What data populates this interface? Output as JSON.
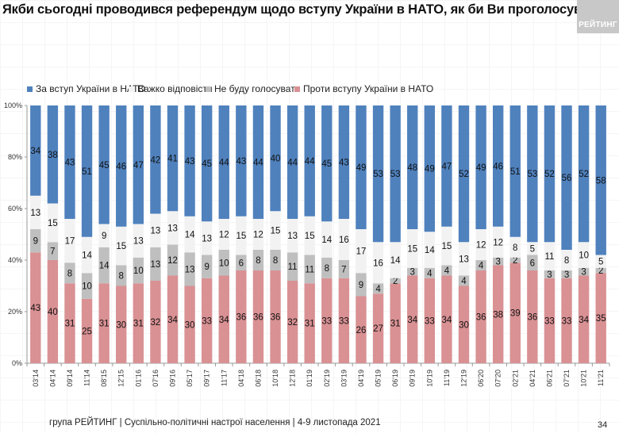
{
  "page": {
    "title": "Якби сьогодні проводився референдум щодо вступу України в НАТО, як би Ви проголосували?",
    "logo_text": "РЕЙТИНГ",
    "footer": "група РЕЙТИНГ | Суспільно-політичні настрої населення  | 4-9 листопада 2021",
    "page_number": "34"
  },
  "chart_data": {
    "type": "bar",
    "stacked": true,
    "percent_stacked": true,
    "title": "Якби сьогодні проводився референдум щодо вступу України в НАТО, як би Ви проголосували?",
    "xlabel": "",
    "ylabel": "",
    "ylim": [
      0,
      100
    ],
    "yticks": [
      "0%",
      "20%",
      "40%",
      "60%",
      "80%",
      "100%"
    ],
    "legend_position": "top",
    "grid": false,
    "categories": [
      "03'14",
      "04'14",
      "09'14",
      "11'14",
      "08'15",
      "12'15",
      "01'16",
      "07'16",
      "09'16",
      "05'17",
      "09'17",
      "11'17",
      "04'18",
      "06'18",
      "10'18",
      "12'18",
      "01'19",
      "02'19",
      "03'19",
      "04'19",
      "05'19",
      "06'19",
      "09'19",
      "10'19",
      "11'19",
      "12'19",
      "06'20",
      "07'20",
      "02'21",
      "04'21",
      "06'21",
      "07'21",
      "10'21",
      "11'21"
    ],
    "series": [
      {
        "name": "Проти вступу України в НАТО",
        "color": "#d99194",
        "values": [
          43,
          40,
          31,
          25,
          31,
          30,
          31,
          32,
          34,
          30,
          33,
          34,
          36,
          36,
          36,
          32,
          31,
          33,
          33,
          26,
          27,
          31,
          34,
          33,
          34,
          30,
          36,
          38,
          39,
          36,
          33,
          33,
          34,
          35
        ]
      },
      {
        "name": "Не буду голосувати",
        "color": "#bfbfbf",
        "values": [
          9,
          7,
          8,
          10,
          14,
          8,
          10,
          13,
          12,
          13,
          9,
          10,
          6,
          8,
          8,
          11,
          11,
          8,
          7,
          9,
          4,
          2,
          3,
          4,
          4,
          4,
          4,
          3,
          2,
          6,
          3,
          3,
          3,
          2
        ]
      },
      {
        "name": "Важко відповісти",
        "color": "#f2f2f2",
        "values": [
          13,
          15,
          17,
          14,
          9,
          15,
          13,
          13,
          13,
          14,
          13,
          12,
          15,
          12,
          15,
          13,
          15,
          14,
          16,
          17,
          16,
          14,
          15,
          14,
          15,
          13,
          12,
          12,
          8,
          5,
          11,
          8,
          10,
          5
        ]
      },
      {
        "name": "За вступ України в НАТО",
        "color": "#4f81bd",
        "values": [
          34,
          38,
          43,
          51,
          45,
          46,
          47,
          42,
          41,
          43,
          45,
          44,
          43,
          44,
          40,
          44,
          44,
          45,
          43,
          49,
          53,
          53,
          48,
          49,
          47,
          52,
          49,
          46,
          51,
          53,
          52,
          56,
          52,
          58
        ]
      }
    ],
    "legend_order": [
      "За вступ України в НАТО",
      "Важко відповісти",
      "Не буду голосувати",
      "Проти вступу України в НАТО"
    ]
  }
}
